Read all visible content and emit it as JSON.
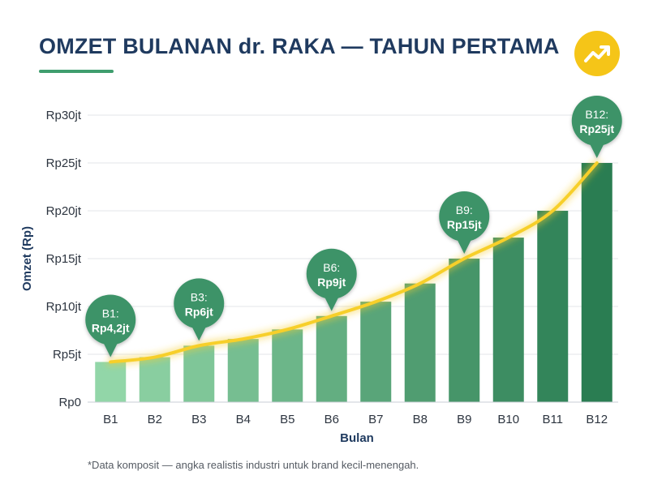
{
  "colors": {
    "title": "#1f3a5f",
    "underline": "#3f9e6e",
    "badge": "#f5c518",
    "trend_line": "#f7cf2a",
    "callout": "#3d9367",
    "bar_light": "#92d6a8",
    "bar_dark": "#2a7d52",
    "axis_text": "#2d3540",
    "grid": "#e3e6ea"
  },
  "header": {
    "title": "OMZET BULANAN dr. RAKA — TAHUN PERTAMA",
    "badge_icon": "trending-up-icon"
  },
  "footnote": "*Data komposit — angka realistis industri untuk brand kecil-menengah.",
  "chart_data": {
    "type": "bar",
    "title": "OMZET BULANAN dr. RAKA — TAHUN PERTAMA",
    "xlabel": "Bulan",
    "ylabel": "Omzet (Rp)",
    "ylim": [
      0,
      30
    ],
    "unit": "juta Rupiah",
    "yticks": [
      {
        "value": 0,
        "label": "Rp0"
      },
      {
        "value": 5,
        "label": "Rp5jt"
      },
      {
        "value": 10,
        "label": "Rp10jt"
      },
      {
        "value": 15,
        "label": "Rp15jt"
      },
      {
        "value": 20,
        "label": "Rp20jt"
      },
      {
        "value": 25,
        "label": "Rp25jt"
      },
      {
        "value": 30,
        "label": "Rp30jt"
      }
    ],
    "categories": [
      "B1",
      "B2",
      "B3",
      "B4",
      "B5",
      "B6",
      "B7",
      "B8",
      "B9",
      "B10",
      "B11",
      "B12"
    ],
    "values": [
      4.2,
      4.7,
      5.9,
      6.6,
      7.6,
      9.0,
      10.5,
      12.4,
      15.0,
      17.2,
      20.0,
      25.0
    ],
    "grid": true,
    "trend_line": true,
    "annotations": [
      {
        "index": 0,
        "line1": "B1:",
        "line2": "Rp4,2jt"
      },
      {
        "index": 2,
        "line1": "B3:",
        "line2": "Rp6jt"
      },
      {
        "index": 5,
        "line1": "B6:",
        "line2": "Rp9jt"
      },
      {
        "index": 8,
        "line1": "B9:",
        "line2": "Rp15jt"
      },
      {
        "index": 11,
        "line1": "B12:",
        "line2": "Rp25jt"
      }
    ]
  }
}
